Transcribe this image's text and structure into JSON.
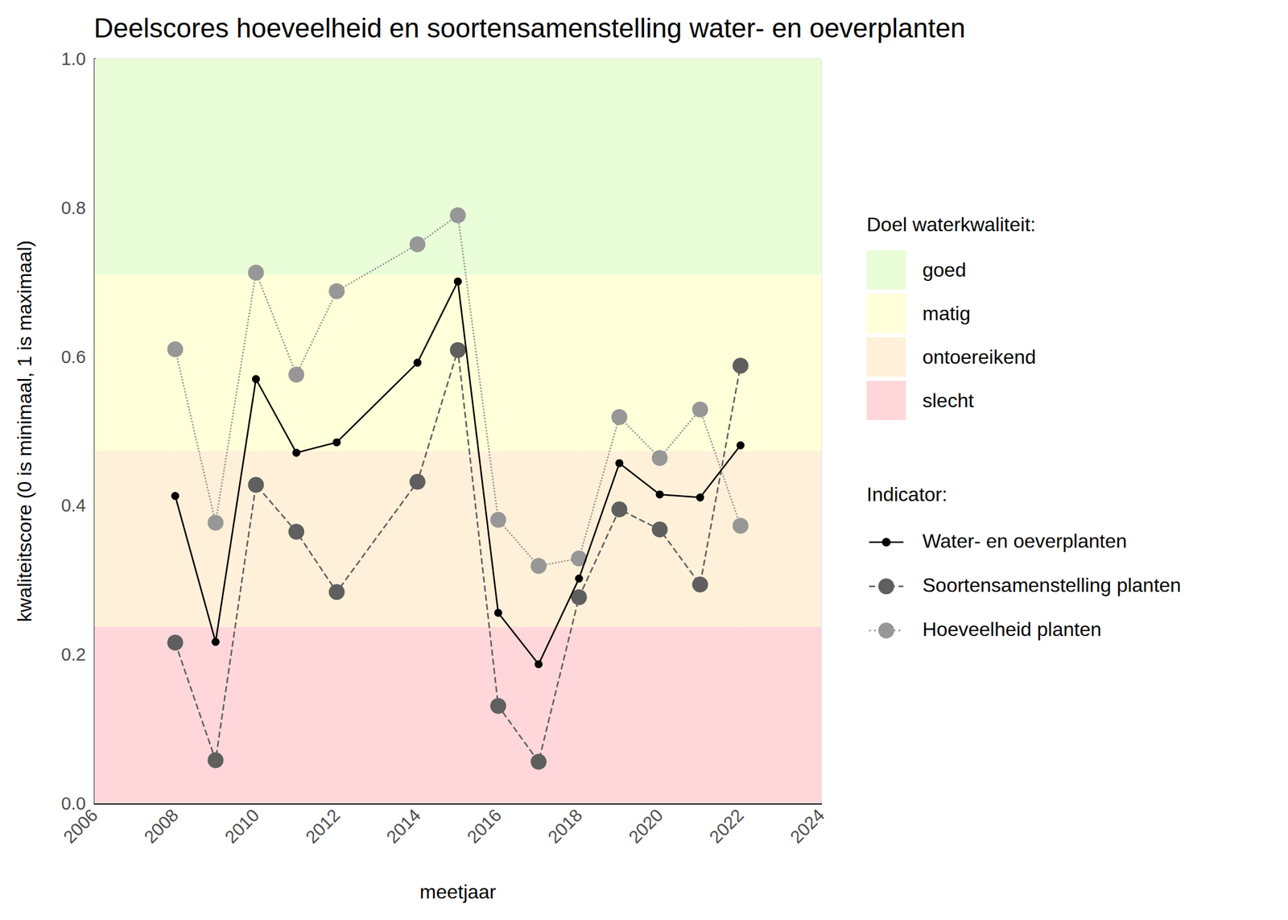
{
  "chart_data": {
    "type": "line",
    "title": "Deelscores hoeveelheid en soortensamenstelling water- en oeverplanten",
    "x_label": "meetjaar",
    "y_label": "kwaliteitscore (0 is minimaal, 1 is maximaal)",
    "x": [
      2008,
      2009,
      2010,
      2011,
      2012,
      2014,
      2015,
      2016,
      2017,
      2018,
      2019,
      2020,
      2021,
      2022
    ],
    "series": [
      {
        "name": "Water- en oeverplanten",
        "color": "#000000",
        "line_style": "solid",
        "marker": "small_circle",
        "values": [
          0.413,
          0.217,
          0.57,
          0.471,
          0.485,
          0.592,
          0.701,
          0.256,
          0.187,
          0.302,
          0.457,
          0.415,
          0.411,
          0.481
        ]
      },
      {
        "name": "Soortensamenstelling planten",
        "color": "#5f5f5f",
        "line_style": "dashed",
        "marker": "circle",
        "values": [
          0.216,
          0.058,
          0.428,
          0.365,
          0.284,
          0.432,
          0.609,
          0.131,
          0.056,
          0.277,
          0.395,
          0.368,
          0.294,
          0.588
        ]
      },
      {
        "name": "Hoeveelheid planten",
        "color": "#979797",
        "line_style": "dotted",
        "marker": "circle",
        "values": [
          0.61,
          0.377,
          0.713,
          0.576,
          0.688,
          0.751,
          0.79,
          0.381,
          0.319,
          0.329,
          0.519,
          0.464,
          0.529,
          0.373
        ]
      }
    ],
    "legend_title": "Indicator:",
    "bands_title": "Doel waterkwaliteit:",
    "bands": [
      {
        "label": "goed",
        "from": 0.71,
        "to": 1.0,
        "color": "#e8fdd8"
      },
      {
        "label": "matig",
        "from": 0.473,
        "to": 0.71,
        "color": "#ffffd9"
      },
      {
        "label": "ontoereikend",
        "from": 0.237,
        "to": 0.473,
        "color": "#fff0d9"
      },
      {
        "label": "slecht",
        "from": 0.0,
        "to": 0.237,
        "color": "#ffd7da"
      }
    ],
    "xlim": [
      2006,
      2024
    ],
    "xticks": [
      2006,
      2008,
      2010,
      2012,
      2014,
      2016,
      2018,
      2020,
      2022,
      2024
    ],
    "ylim": [
      0,
      1
    ],
    "yticks": [
      {
        "value": 0,
        "label": "0.0"
      },
      0.2,
      0.4,
      0.6,
      0.8,
      {
        "value": 1,
        "label": "1.0"
      }
    ],
    "grid": true
  }
}
